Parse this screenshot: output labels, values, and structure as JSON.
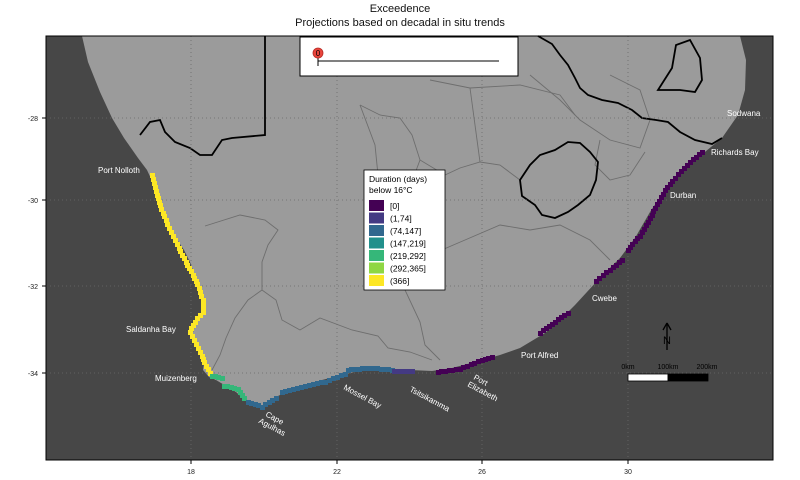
{
  "title": "Exceedence",
  "subtitle": "Projections based on decadal in situ trends",
  "timeline": {
    "value_label": "0",
    "value": 0
  },
  "legend": {
    "title_line1": "Duration (days)",
    "title_line2": "below 16°C",
    "items": [
      {
        "label": "[0]",
        "color": "#440154"
      },
      {
        "label": "(1,74]",
        "color": "#443A83"
      },
      {
        "label": "(74,147]",
        "color": "#31688E"
      },
      {
        "label": "(147,219]",
        "color": "#21908C"
      },
      {
        "label": "(219,292]",
        "color": "#35B779"
      },
      {
        "label": "(292,365]",
        "color": "#8FD744"
      },
      {
        "label": "(366]",
        "color": "#FDE725"
      }
    ]
  },
  "axes": {
    "x_ticks": [
      "18",
      "22",
      "26",
      "30"
    ],
    "y_ticks": [
      "-28",
      "-30",
      "-32",
      "-34"
    ]
  },
  "places": {
    "sodwana": "Sodwana",
    "richards_bay": "Richards Bay",
    "durban": "Durban",
    "port_nolloth": "Port Nolloth",
    "saldanha_bay": "Saldanha Bay",
    "muizenberg": "Muizenberg",
    "cape_agulhas_1": "Cape",
    "cape_agulhas_2": "Agulhas",
    "mossel_bay": "Mossel Bay",
    "tsitsikamma": "Tsitsikamma",
    "port_elizabeth_1": "Port",
    "port_elizabeth_2": "Elizabeth",
    "port_alfred": "Port Alfred",
    "cwebe": "Cwebe"
  },
  "scalebar": {
    "labels": [
      "0km",
      "100km",
      "200km"
    ],
    "north": "N"
  },
  "colors": {
    "ocean": "#474747",
    "land": "#9b9b9b",
    "province_border": "#6e6e6e",
    "country_border": "#000000",
    "grid": "#6a6a6a"
  }
}
